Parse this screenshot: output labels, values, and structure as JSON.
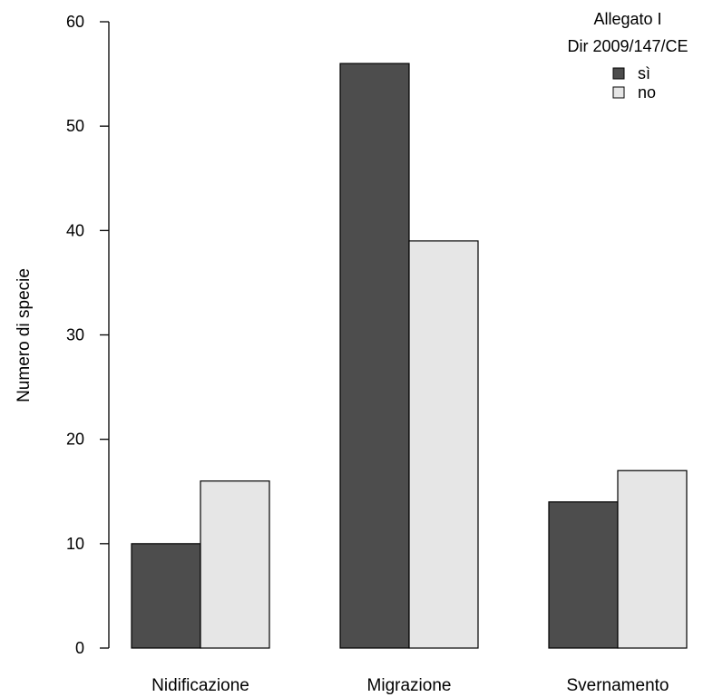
{
  "chart_data": {
    "type": "bar",
    "categories": [
      "Nidificazione",
      "Migrazione",
      "Svernamento"
    ],
    "series": [
      {
        "name": "sì",
        "values": [
          10,
          56,
          14
        ],
        "color": "#4d4d4d"
      },
      {
        "name": "no",
        "values": [
          16,
          39,
          17
        ],
        "color": "#e6e6e6"
      }
    ],
    "title": "",
    "xlabel": "",
    "ylabel": "Numero di specie",
    "ylim": [
      0,
      60
    ],
    "yticks": [
      0,
      10,
      20,
      30,
      40,
      50,
      60
    ],
    "grid": false,
    "legend": {
      "title_line1": "Allegato I",
      "title_line2": "Dir 2009/147/CE",
      "placement": "top-right"
    }
  }
}
